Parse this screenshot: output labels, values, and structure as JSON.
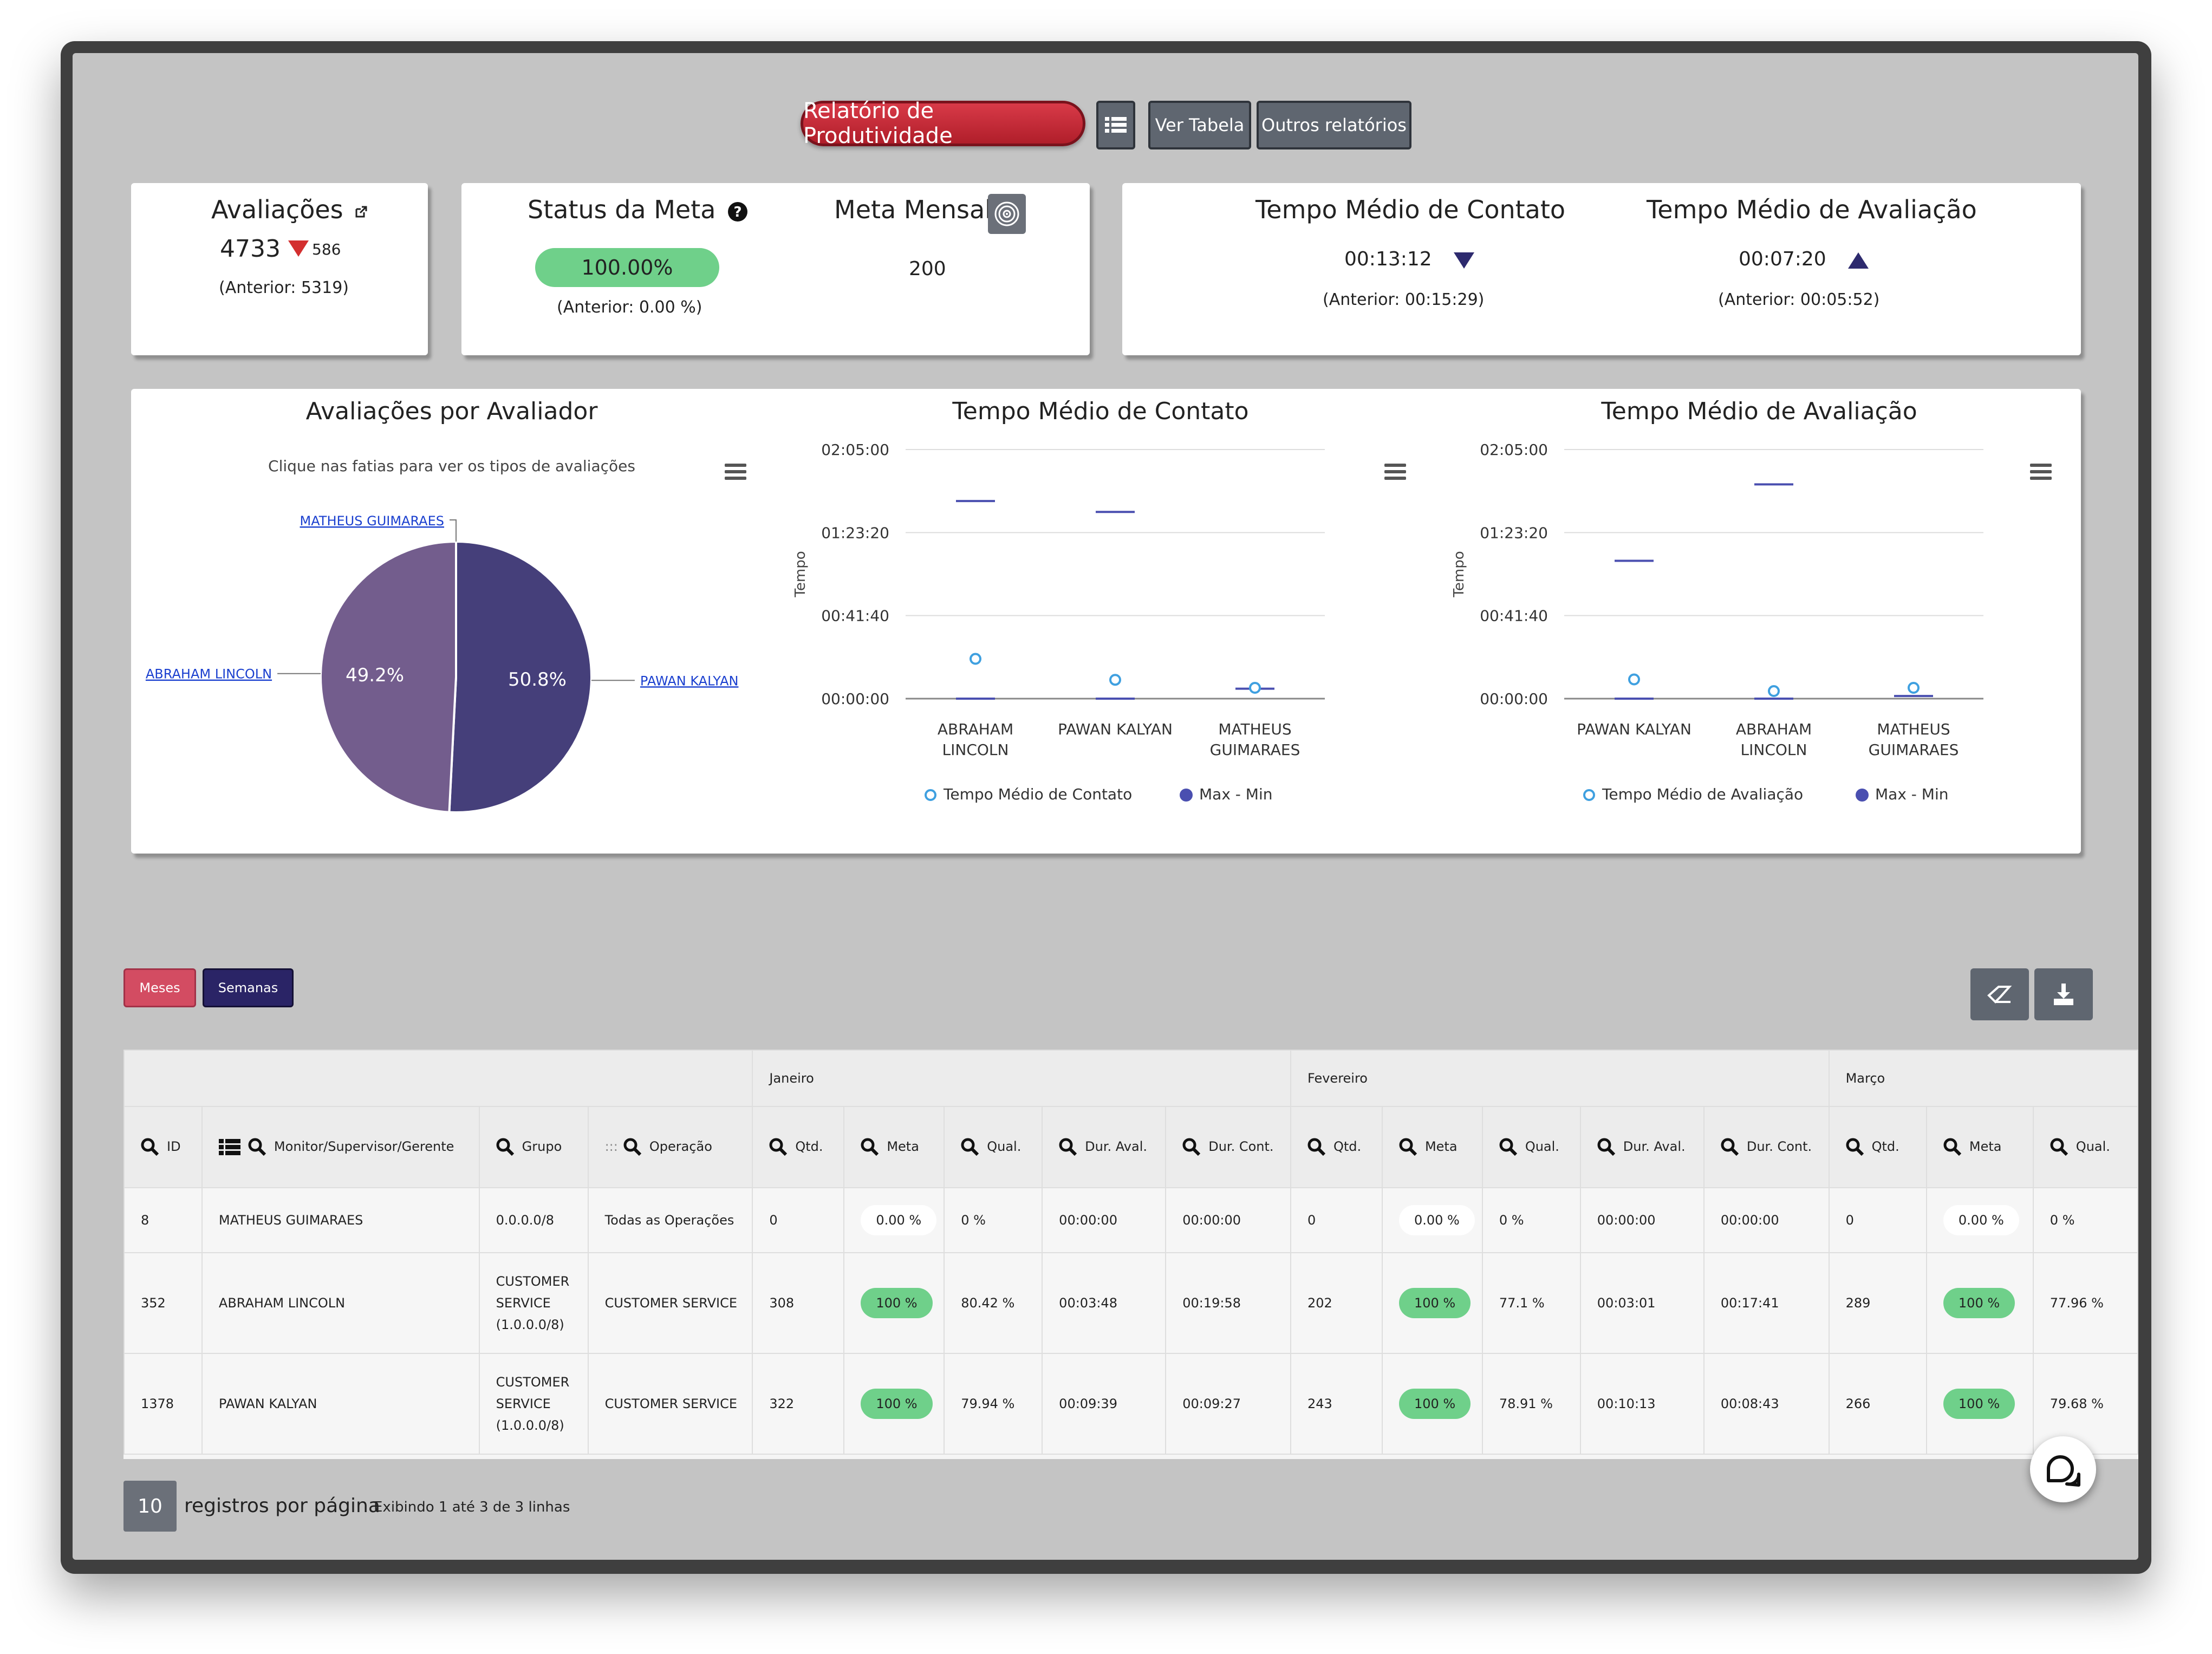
{
  "toolbar": {
    "report_label": "Relatório de Produtividade",
    "list_icon": "list-icon",
    "view_table_label": "Ver Tabela",
    "other_reports_label": "Outros relatórios"
  },
  "cards": {
    "avaliacoes": {
      "title": "Avaliações",
      "value": "4733",
      "delta": "586",
      "previous": "(Anterior: 5319)"
    },
    "status_meta": {
      "title": "Status da Meta",
      "value": "100.00%",
      "previous": "(Anterior: 0.00 %)"
    },
    "meta_mensal": {
      "title": "Meta Mensal",
      "value": "200"
    },
    "tempo_contato": {
      "title": "Tempo Médio de Contato",
      "value": "00:13:12",
      "previous": "(Anterior: 00:15:29)"
    },
    "tempo_avaliacao": {
      "title": "Tempo Médio de Avaliação",
      "value": "00:07:20",
      "previous": "(Anterior: 00:05:52)"
    }
  },
  "colors": {
    "red": "#d32f2f",
    "navy": "#2d2a6e",
    "pie_dark": "#453f7a",
    "pie_light": "#735d8d",
    "green": "#6fd08a",
    "circle": "#3fa0e0",
    "line": "#4a4fb0"
  },
  "chart_data": [
    {
      "type": "pie",
      "title": "Avaliações por Avaliador",
      "subtitle": "Clique nas fatias para ver os tipos de avaliações",
      "slices": [
        {
          "name": "PAWAN KALYAN",
          "value": 50.8,
          "label": "50.8%"
        },
        {
          "name": "ABRAHAM LINCOLN",
          "value": 49.2,
          "label": "49.2%"
        },
        {
          "name": "MATHEUS GUIMARAES",
          "value": 0,
          "label": ""
        }
      ]
    },
    {
      "type": "scatter",
      "title": "Tempo Médio de Contato",
      "ylabel": "Tempo",
      "yticks": [
        "02:05:00",
        "01:23:20",
        "00:41:40",
        "00:00:00"
      ],
      "ylim_seconds": [
        0,
        7500
      ],
      "categories": [
        "ABRAHAM LINCOLN",
        "PAWAN KALYAN",
        "MATHEUS GUIMARAES"
      ],
      "series": [
        {
          "name": "Tempo Médio de Contato",
          "values_seconds": [
            1198,
            567,
            0
          ]
        },
        {
          "name": "Max - Min",
          "max_seconds": [
            5950,
            5620,
            300
          ],
          "min_seconds": [
            0,
            0,
            300
          ]
        }
      ]
    },
    {
      "type": "scatter",
      "title": "Tempo Médio de Avaliação",
      "ylabel": "Tempo",
      "yticks": [
        "02:05:00",
        "01:23:20",
        "00:41:40",
        "00:00:00"
      ],
      "ylim_seconds": [
        0,
        7500
      ],
      "categories": [
        "PAWAN KALYAN",
        "ABRAHAM LINCOLN",
        "MATHEUS GUIMARAES"
      ],
      "series": [
        {
          "name": "Tempo Médio de Avaliação",
          "values_seconds": [
            579,
            228,
            0
          ]
        },
        {
          "name": "Max - Min",
          "max_seconds": [
            4150,
            6450,
            80
          ],
          "min_seconds": [
            0,
            0,
            80
          ]
        }
      ]
    }
  ],
  "controls": {
    "months_label": "Meses",
    "weeks_label": "Semanas"
  },
  "table": {
    "months": [
      "Janeiro",
      "Fevereiro",
      "Março"
    ],
    "fixed_headers": [
      "ID",
      "Monitor/Supervisor/Gerente",
      "Grupo",
      "Operação"
    ],
    "month_headers": [
      "Qtd.",
      "Meta",
      "Qual.",
      "Dur. Aval.",
      "Dur. Cont."
    ],
    "rows": [
      {
        "id": "8",
        "name": "MATHEUS GUIMARAES",
        "grupo": "0.0.0.0/8",
        "operacao": "Todas as Operações",
        "jan": [
          "0",
          "0.00 %",
          "0 %",
          "00:00:00",
          "00:00:00"
        ],
        "feb": [
          "0",
          "0.00 %",
          "0 %",
          "00:00:00",
          "00:00:00"
        ],
        "mar": [
          "0",
          "0.00 %",
          "0 %"
        ]
      },
      {
        "id": "352",
        "name": "ABRAHAM LINCOLN",
        "grupo": "CUSTOMER SERVICE (1.0.0.0/8)",
        "operacao": "CUSTOMER SERVICE",
        "jan": [
          "308",
          "100 %",
          "80.42 %",
          "00:03:48",
          "00:19:58"
        ],
        "feb": [
          "202",
          "100 %",
          "77.1 %",
          "00:03:01",
          "00:17:41"
        ],
        "mar": [
          "289",
          "100 %",
          "77.96 %"
        ]
      },
      {
        "id": "1378",
        "name": "PAWAN KALYAN",
        "grupo": "CUSTOMER SERVICE (1.0.0.0/8)",
        "operacao": "CUSTOMER SERVICE",
        "jan": [
          "322",
          "100 %",
          "79.94 %",
          "00:09:39",
          "00:09:27"
        ],
        "feb": [
          "243",
          "100 %",
          "78.91 %",
          "00:10:13",
          "00:08:43"
        ],
        "mar": [
          "266",
          "100 %",
          "79.68 %"
        ]
      }
    ]
  },
  "pagination": {
    "page_size": "10",
    "per_page_label": "registros por página",
    "showing": "Exibindo 1 até 3 de 3 linhas"
  }
}
